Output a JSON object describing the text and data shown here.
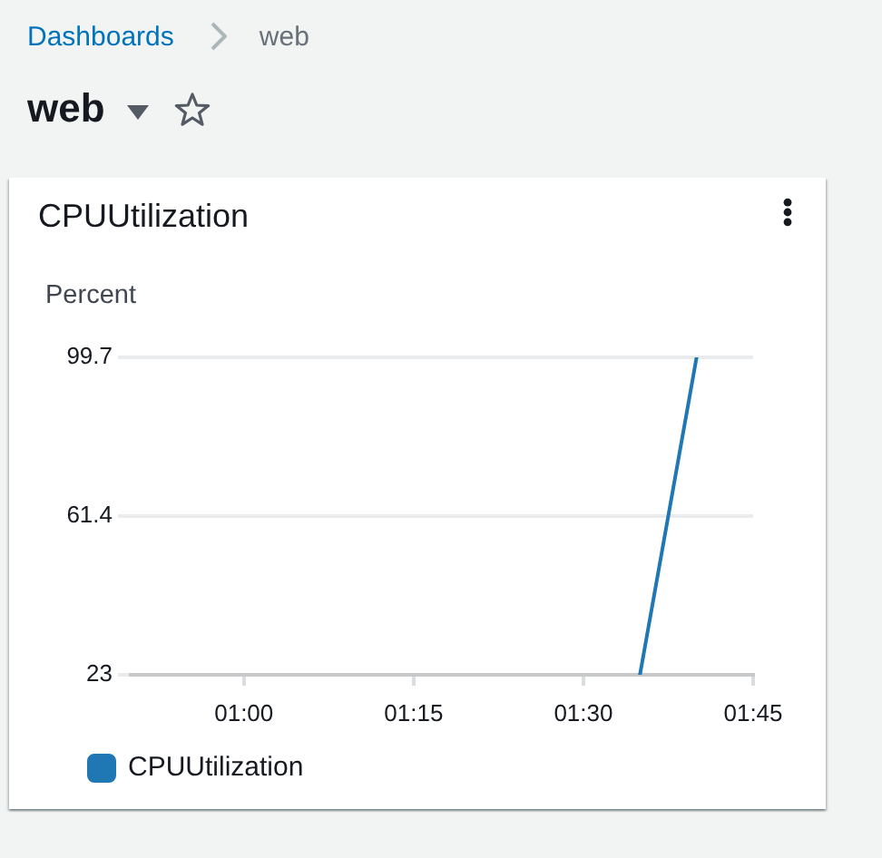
{
  "chart_data": {
    "type": "line",
    "title": "CPUUtilization",
    "ylabel": "Percent",
    "annotations": [
      "Dashboards",
      "web",
      "web"
    ],
    "x": [
      1.5833,
      1.6667
    ],
    "series": [
      {
        "name": "CPUUtilization",
        "color": "#1f77b4",
        "values": [
          23,
          99.7
        ]
      }
    ],
    "xlim": [
      0.8333,
      1.75
    ],
    "xticks": [
      {
        "value": 1,
        "label": "01:00"
      },
      {
        "value": 1.25,
        "label": "01:15"
      },
      {
        "value": 1.5,
        "label": "01:30"
      },
      {
        "value": 1.75,
        "label": "01:45"
      }
    ],
    "ylim": [
      23,
      99.7
    ],
    "yticks": [
      23,
      61.4,
      99.7
    ],
    "grid": "y",
    "legend": "bottom left"
  }
}
